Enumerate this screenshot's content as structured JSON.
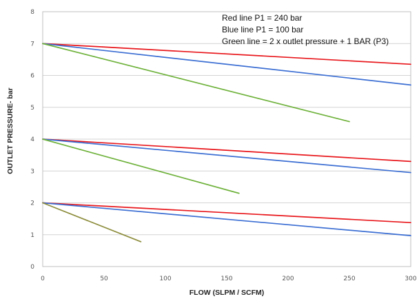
{
  "chart_data": {
    "type": "line",
    "xlabel": "FLOW (SLPM /  SCFM)",
    "ylabel": "OUTLET PRESSURE- bar",
    "xlim": [
      0,
      300
    ],
    "ylim": [
      0,
      8
    ],
    "x_ticks": [
      "0",
      "50",
      "100",
      "150",
      "200",
      "250",
      "300"
    ],
    "y_ticks": [
      "0",
      "1",
      "2",
      "3",
      "4",
      "5",
      "6",
      "7",
      "8"
    ],
    "grid": "horizontal",
    "annotations": [
      "Red line P1 = 240 bar",
      "Blue line P1 = 100 bar",
      "Green line = 2 x outlet pressure + 1 BAR (P3)"
    ],
    "colors": {
      "red": "#e8161b",
      "blue": "#3b6ed3",
      "green": "#6fb23c",
      "olive": "#8c8c3c"
    },
    "series": [
      {
        "color": "red",
        "points": [
          [
            0,
            7.0
          ],
          [
            300,
            6.35
          ]
        ]
      },
      {
        "color": "blue",
        "points": [
          [
            0,
            7.0
          ],
          [
            300,
            5.7
          ]
        ]
      },
      {
        "color": "green",
        "points": [
          [
            0,
            7.0
          ],
          [
            250,
            4.55
          ]
        ]
      },
      {
        "color": "red",
        "points": [
          [
            0,
            4.0
          ],
          [
            300,
            3.3
          ]
        ]
      },
      {
        "color": "blue",
        "points": [
          [
            0,
            4.0
          ],
          [
            300,
            2.95
          ]
        ]
      },
      {
        "color": "green",
        "points": [
          [
            0,
            4.0
          ],
          [
            160,
            2.3
          ]
        ]
      },
      {
        "color": "red",
        "points": [
          [
            0,
            2.0
          ],
          [
            300,
            1.38
          ]
        ]
      },
      {
        "color": "blue",
        "points": [
          [
            0,
            2.0
          ],
          [
            300,
            0.97
          ]
        ]
      },
      {
        "color": "olive",
        "points": [
          [
            0,
            2.0
          ],
          [
            80,
            0.78
          ]
        ]
      }
    ]
  }
}
